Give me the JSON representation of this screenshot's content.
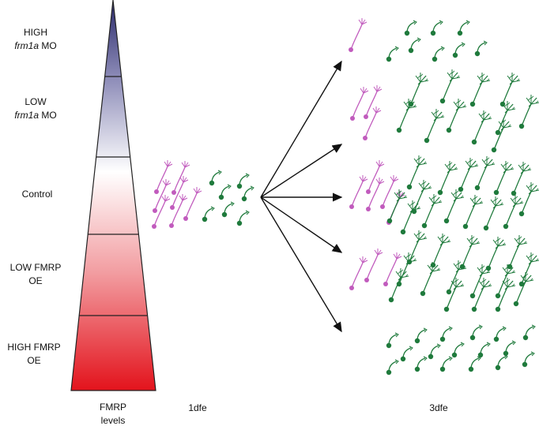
{
  "levels": [
    {
      "line1": "HIGH",
      "line2_italic": "frm1a",
      "line2_rest": " MO"
    },
    {
      "line1": "LOW",
      "line2_italic": "frm1a",
      "line2_rest": " MO"
    },
    {
      "line1": "Control"
    },
    {
      "line1": "LOW FMRP",
      "line2_rest": "OE"
    },
    {
      "line1": "HIGH FMRP",
      "line2_rest": "OE"
    }
  ],
  "axis": {
    "line1": "FMRP",
    "line2": "levels"
  },
  "timepoints": {
    "early": "1dfe",
    "late": "3dfe"
  },
  "colors": {
    "high_mo": "#2b2a6b",
    "control": "#ffffff",
    "high_oe": "#e3131c",
    "immature_neuron": "#c15bbd",
    "mature_neuron": "#1f7a3c",
    "arrow": "#111111"
  },
  "icons": {
    "immature": "immature-neuron-icon",
    "mature": "mature-neuron-icon"
  }
}
